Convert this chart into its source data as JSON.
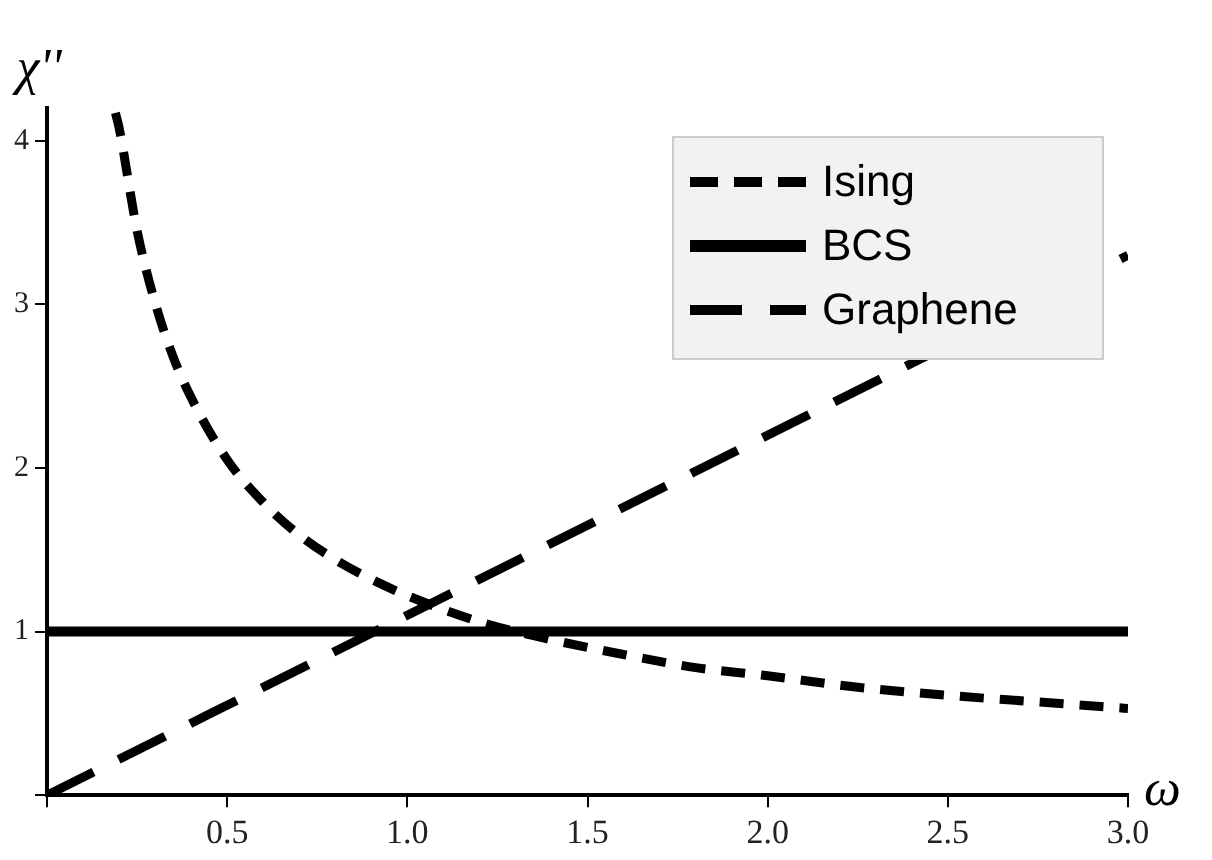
{
  "chart_data": {
    "type": "line",
    "xlabel": "ω",
    "ylabel": "χ''",
    "xlim": [
      0,
      3.0
    ],
    "xticks": [
      {
        "value": 0,
        "label": null
      },
      0.5,
      {
        "value": 1,
        "label": "1.0"
      },
      1.5,
      {
        "value": 2,
        "label": "2.0"
      },
      2.5,
      {
        "value": 3,
        "label": "3.0"
      }
    ],
    "ylim": [
      0,
      4.2
    ],
    "yticks": [
      {
        "value": 0,
        "label": null
      },
      1,
      2,
      3,
      4
    ],
    "grid": false,
    "legend": "top right",
    "marker": "none",
    "series": [
      {
        "name": "Ising",
        "color": "#000000",
        "line_style": "dashed",
        "x": [
          0.19,
          0.2,
          0.25,
          0.3,
          0.35,
          0.4,
          0.5,
          0.6,
          0.7,
          0.8,
          0.9,
          1.0,
          1.2,
          1.4,
          1.6,
          1.8,
          2.0,
          2.25,
          2.5,
          2.75,
          3.0
        ],
        "values": [
          4.17,
          4.08,
          3.45,
          3.01,
          2.68,
          2.43,
          2.05,
          1.79,
          1.59,
          1.44,
          1.32,
          1.22,
          1.06,
          0.95,
          0.86,
          0.78,
          0.73,
          0.66,
          0.61,
          0.57,
          0.53
        ]
      },
      {
        "name": "BCS",
        "color": "#000000",
        "line_style": "solid",
        "x": [
          0,
          3.0
        ],
        "values": [
          1,
          1
        ]
      },
      {
        "name": "Graphene",
        "color": "#000000",
        "line_style": "longdashed",
        "x": [
          0,
          3.0
        ],
        "values": [
          0,
          3.3
        ]
      }
    ]
  }
}
